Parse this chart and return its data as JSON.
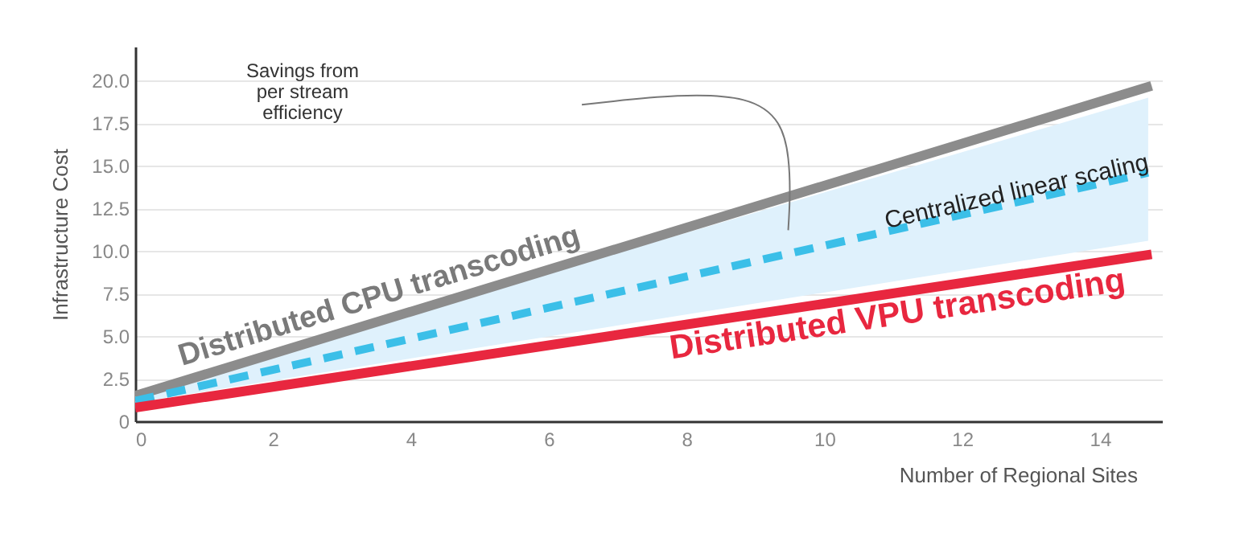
{
  "chart_data": {
    "type": "line",
    "xlabel": "Number of Regional Sites",
    "ylabel": "Infrastructure Cost",
    "xlim": [
      0,
      14.9
    ],
    "ylim": [
      0,
      22
    ],
    "xticks": [
      0,
      2,
      4,
      6,
      8,
      10,
      12,
      14
    ],
    "yticks": [
      0,
      {
        "value": 2.5,
        "label": "2.5"
      },
      {
        "value": 5,
        "label": "5.0"
      },
      {
        "value": 7.5,
        "label": "7.5"
      },
      {
        "value": 10,
        "label": "10.0"
      },
      {
        "value": 12.5,
        "label": "12.5"
      },
      {
        "value": 15,
        "label": "15.0"
      },
      {
        "value": 17.5,
        "label": "17.5"
      },
      {
        "value": 20,
        "label": "20.0"
      }
    ],
    "grid": "y",
    "legend": false,
    "series": [
      {
        "name": "Distributed CPU transcoding",
        "color": "#8c8c8c",
        "x": [
          0,
          14.75
        ],
        "values": [
          1.5,
          19.7
        ],
        "line_style": "solid"
      },
      {
        "name": "Centralized linear scaling",
        "color": "#3bbfe8",
        "x": [
          0,
          14.7
        ],
        "values": [
          1.2,
          14.6
        ],
        "lower": [
          1.1,
          10.6
        ],
        "upper": [
          1.6,
          19.0
        ],
        "line_style": "dashed"
      },
      {
        "name": "Distributed VPU transcoding",
        "color": "#e8273f",
        "x": [
          0,
          14.75
        ],
        "values": [
          0.8,
          9.8
        ],
        "line_style": "solid"
      }
    ],
    "annotations": [
      "Savings from per stream efficiency"
    ]
  }
}
